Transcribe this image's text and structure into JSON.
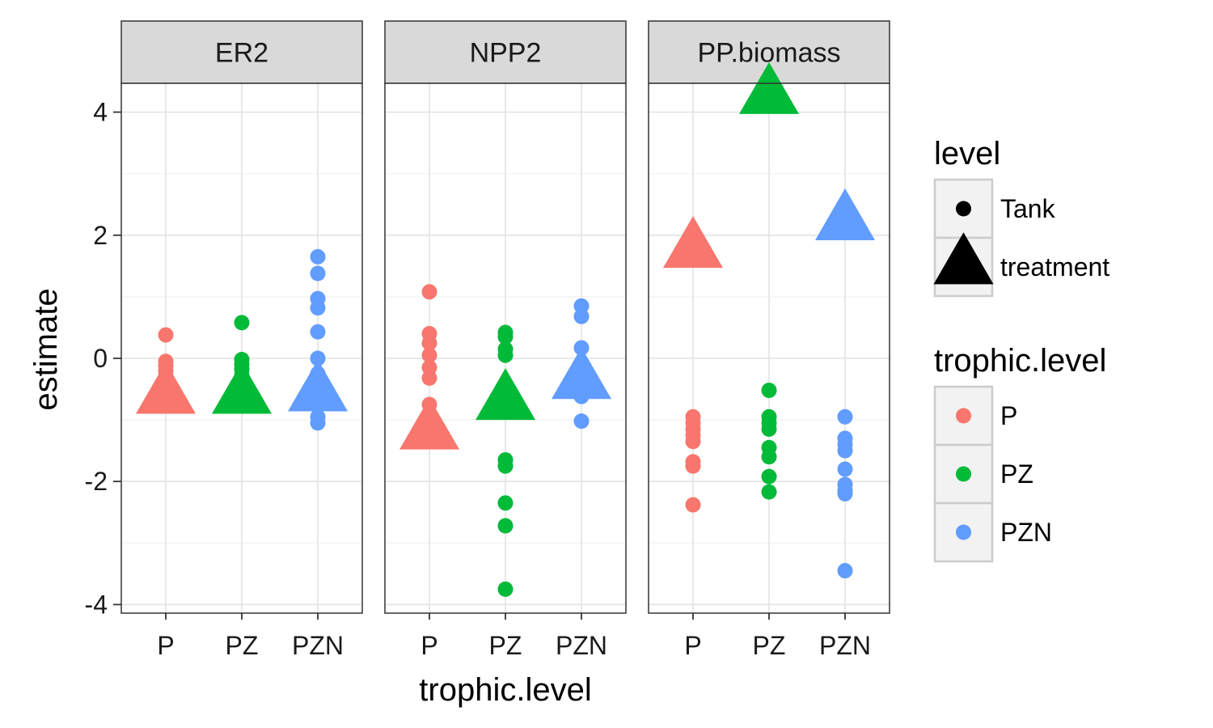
{
  "chart_data": {
    "type": "scatter",
    "xlabel": "trophic.level",
    "ylabel": "estimate",
    "categories": [
      "P",
      "PZ",
      "PZN"
    ],
    "ylim": [
      -4.1,
      4.4
    ],
    "yticks": [
      4,
      2,
      0,
      -2,
      -4
    ],
    "grid": true,
    "legend_placement": "right",
    "colors": {
      "P": "#F8766D",
      "PZ": "#00BA38",
      "PZN": "#619CFF"
    },
    "facets": [
      {
        "name": "ER2",
        "tank": {
          "P": [
            0.38,
            -0.05,
            -0.12,
            -0.2,
            -0.28,
            -0.35
          ],
          "PZ": [
            0.58,
            -0.02,
            -0.1,
            -0.18,
            -0.28
          ],
          "PZN": [
            1.65,
            1.38,
            0.97,
            0.82,
            0.43,
            0.0,
            -0.25,
            -0.95,
            -1.05
          ]
        },
        "treatment": {
          "P": -0.62,
          "PZ": -0.62,
          "PZN": -0.58
        }
      },
      {
        "name": "NPP2",
        "tank": {
          "P": [
            1.08,
            0.4,
            0.25,
            0.05,
            -0.15,
            -0.32,
            -0.75
          ],
          "PZ": [
            0.42,
            0.35,
            0.15,
            0.05,
            -1.65,
            -1.75,
            -2.35,
            -2.72,
            -3.75
          ],
          "PZN": [
            0.85,
            0.68,
            0.17,
            -0.62,
            -1.02
          ]
        },
        "treatment": {
          "P": -1.2,
          "PZ": -0.72,
          "PZN": -0.38
        }
      },
      {
        "name": "PP.biomass",
        "tank": {
          "P": [
            -0.95,
            -1.05,
            -1.15,
            -1.25,
            -1.35,
            -1.68,
            -1.75,
            -2.38
          ],
          "PZ": [
            -0.52,
            -0.95,
            -1.05,
            -1.15,
            -1.45,
            -1.6,
            -1.92,
            -2.17
          ],
          "PZN": [
            -0.95,
            -1.3,
            -1.4,
            -1.5,
            -1.8,
            -2.05,
            -2.15,
            -2.2,
            -3.45
          ]
        },
        "treatment": {
          "P": 1.75,
          "PZ": 4.25,
          "PZN": 2.2
        }
      }
    ],
    "legends": [
      {
        "title": "level",
        "items": [
          "Tank",
          "treatment"
        ]
      },
      {
        "title": "trophic.level",
        "items": [
          "P",
          "PZ",
          "PZN"
        ]
      }
    ]
  }
}
